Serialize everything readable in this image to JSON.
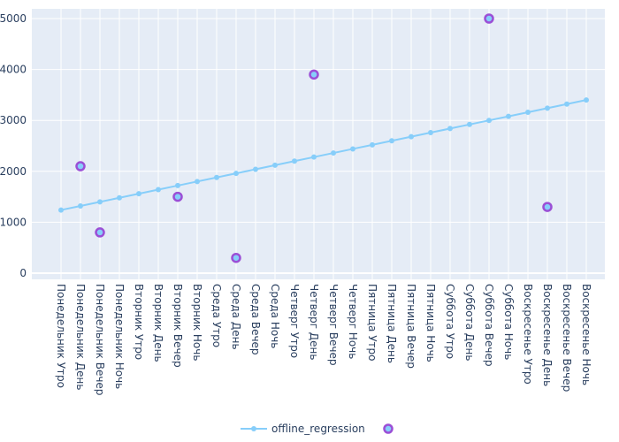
{
  "chart_data": {
    "type": "line",
    "categories": [
      "Понедельник Утро",
      "Понедельник День",
      "Понедельник Вечер",
      "Понедельник Ночь",
      "Вторник Утро",
      "Вторник День",
      "Вторник Вечер",
      "Вторник Ночь",
      "Среда Утро",
      "Среда День",
      "Среда Вечер",
      "Среда Ночь",
      "Четверг Утро",
      "Четверг День",
      "Четверг Вечер",
      "Четверг Ночь",
      "Пятница Утро",
      "Пятница День",
      "Пятница Вечер",
      "Пятница Ночь",
      "Суббота Утро",
      "Суббота День",
      "Суббота Вечер",
      "Суббота Ночь",
      "Воскресенье Утро",
      "Воскресенье День",
      "Воскресенье Вечер",
      "Воскресенье Ночь"
    ],
    "series": [
      {
        "name": "offline_regression",
        "mode": "lines+markers",
        "color": "#87cefa",
        "values": [
          1240,
          1320,
          1400,
          1480,
          1560,
          1640,
          1720,
          1800,
          1880,
          1960,
          2040,
          2120,
          2200,
          2280,
          2360,
          2440,
          2520,
          2600,
          2680,
          2760,
          2840,
          2920,
          3000,
          3080,
          3160,
          3240,
          3320,
          3400
        ]
      },
      {
        "name": "",
        "mode": "markers",
        "color": "#87cefa",
        "outline_color": "#9b4fd6",
        "points": [
          {
            "category": "Понедельник День",
            "value": 2100
          },
          {
            "category": "Понедельник Вечер",
            "value": 800
          },
          {
            "category": "Вторник Вечер",
            "value": 1500
          },
          {
            "category": "Среда День",
            "value": 300
          },
          {
            "category": "Четверг День",
            "value": 3900
          },
          {
            "category": "Суббота Вечер",
            "value": 5000
          },
          {
            "category": "Воскресенье День",
            "value": 1300
          }
        ]
      }
    ],
    "yticks": [
      0,
      1000,
      2000,
      3000,
      4000,
      5000
    ],
    "ylim": [
      -120,
      5200
    ],
    "grid": true,
    "legend_position": "bottom-center",
    "plot_bgcolor": "#e5ecf6",
    "title": "",
    "xlabel": "",
    "ylabel": ""
  }
}
